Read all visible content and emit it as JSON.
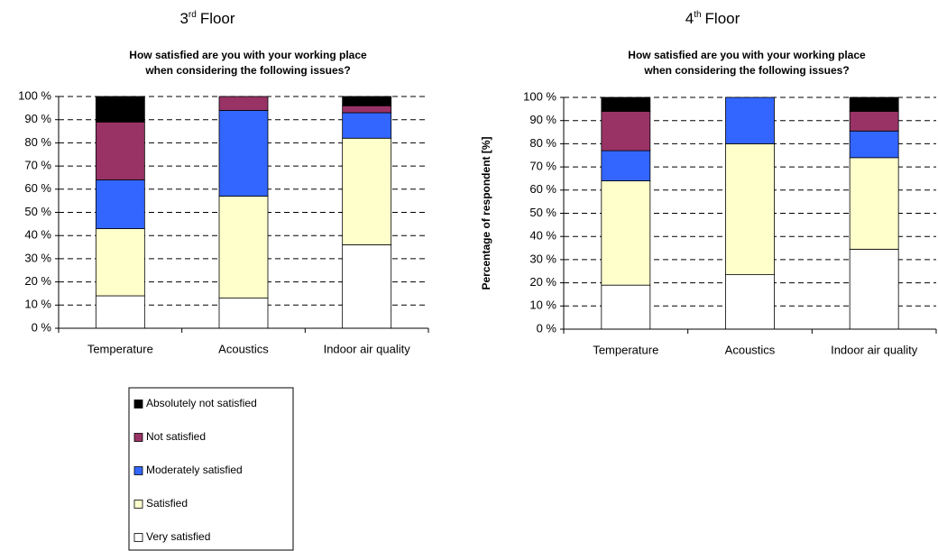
{
  "chart_data": [
    {
      "type": "bar",
      "stacked": true,
      "title": "3",
      "title_superscript": "rd",
      "title_suffix": "Floor",
      "subtitle": [
        "How satisfied are you with your working place",
        "when considering the following issues?"
      ],
      "categories": [
        "Temperature",
        "Acoustics",
        "Indoor air quality"
      ],
      "series": [
        {
          "values": [
            11,
            0,
            4
          ]
        },
        {
          "values": [
            25,
            6,
            3
          ]
        },
        {
          "values": [
            21,
            37,
            11
          ]
        },
        {
          "values": [
            29,
            44,
            46
          ]
        },
        {
          "values": [
            14,
            13,
            36
          ]
        }
      ],
      "ylim": [
        0,
        100
      ],
      "yticks": [
        {
          "value": 0,
          "label": "0 %"
        },
        {
          "value": 10,
          "label": "10 %"
        },
        {
          "value": 20,
          "label": "20 %"
        },
        {
          "value": 30,
          "label": "30 %"
        },
        {
          "value": 40,
          "label": "40 %"
        },
        {
          "value": 50,
          "label": "50 %"
        },
        {
          "value": 60,
          "label": "60 %"
        },
        {
          "value": 70,
          "label": "70 %"
        },
        {
          "value": 80,
          "label": "80 %"
        },
        {
          "value": 90,
          "label": "90 %"
        },
        {
          "value": 100,
          "label": "100 %"
        }
      ],
      "grid": true
    },
    {
      "type": "bar",
      "stacked": true,
      "title": "4",
      "title_superscript": "th",
      "title_suffix": "Floor",
      "subtitle": [
        "How satisfied are you with your working place",
        "when considering the following issues?"
      ],
      "ylabel": "Percentage of respondent [%]",
      "categories": [
        "Temperature",
        "Acoustics",
        "Indoor air quality"
      ],
      "series": [
        {
          "values": [
            6,
            0,
            6
          ]
        },
        {
          "values": [
            17,
            0,
            8.5
          ]
        },
        {
          "values": [
            13,
            20,
            11.5
          ]
        },
        {
          "values": [
            45,
            56.5,
            39.5
          ]
        },
        {
          "values": [
            19,
            23.5,
            34.5
          ]
        }
      ],
      "ylim": [
        0,
        100
      ],
      "yticks": [
        {
          "value": 0,
          "label": "0 %"
        },
        {
          "value": 10,
          "label": "10 %"
        },
        {
          "value": 20,
          "label": "20 %"
        },
        {
          "value": 30,
          "label": "30 %"
        },
        {
          "value": 40,
          "label": "40 %"
        },
        {
          "value": 50,
          "label": "50 %"
        },
        {
          "value": 60,
          "label": "60 %"
        },
        {
          "value": 70,
          "label": "70 %"
        },
        {
          "value": 80,
          "label": "80 %"
        },
        {
          "value": 90,
          "label": "90 %"
        },
        {
          "value": 100,
          "label": "100 %"
        }
      ],
      "grid": true
    }
  ],
  "legend": {
    "entries": [
      {
        "name": "Absolutely not satisfied",
        "color": "#000000"
      },
      {
        "name": "Not satisfied",
        "color": "#993366"
      },
      {
        "name": "Moderately satisfied",
        "color": "#3366ff"
      },
      {
        "name": "Satisfied",
        "color": "#ffffcc"
      },
      {
        "name": "Very satisfied",
        "color": "#ffffff"
      }
    ]
  }
}
